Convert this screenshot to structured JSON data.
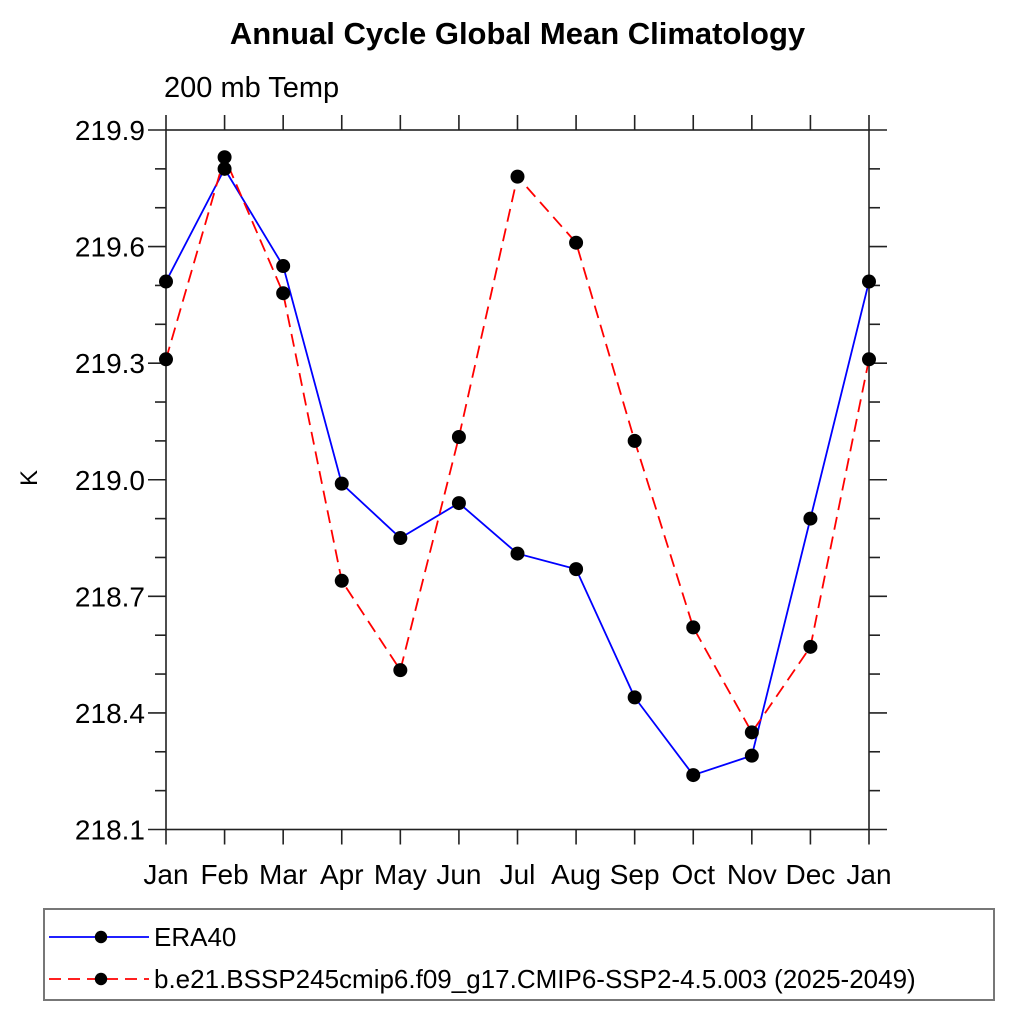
{
  "chart_data": {
    "type": "line",
    "title": "Annual Cycle Global Mean Climatology",
    "subtitle": "200 mb Temp",
    "ylabel": "K",
    "x_categories": [
      "Jan",
      "Feb",
      "Mar",
      "Apr",
      "May",
      "Jun",
      "Jul",
      "Aug",
      "Sep",
      "Oct",
      "Nov",
      "Dec",
      "Jan"
    ],
    "ylim": [
      218.1,
      219.9
    ],
    "ytick_major": [
      219.9,
      219.6,
      219.3,
      219.0,
      218.7,
      218.4,
      218.1
    ],
    "ytick_minor_step": 0.1,
    "grid": false,
    "legend_position": "bottom-left-box",
    "axis_color": "#222222",
    "marker_color": "#000000",
    "series": [
      {
        "name": "ERA40",
        "color": "#0000ff",
        "line_style": "solid",
        "marker": "filled-circle",
        "values": [
          219.51,
          219.8,
          219.55,
          218.99,
          218.85,
          218.94,
          218.81,
          218.77,
          218.44,
          218.24,
          218.29,
          218.9,
          219.51
        ]
      },
      {
        "name": "b.e21.BSSP245cmip6.f09_g17.CMIP6-SSP2-4.5.003 (2025-2049)",
        "color": "#ff0000",
        "line_style": "dashed",
        "marker": "filled-circle",
        "values": [
          219.31,
          219.83,
          219.48,
          218.74,
          218.51,
          219.11,
          219.78,
          219.61,
          219.1,
          218.62,
          218.35,
          218.57,
          219.31
        ]
      }
    ]
  }
}
